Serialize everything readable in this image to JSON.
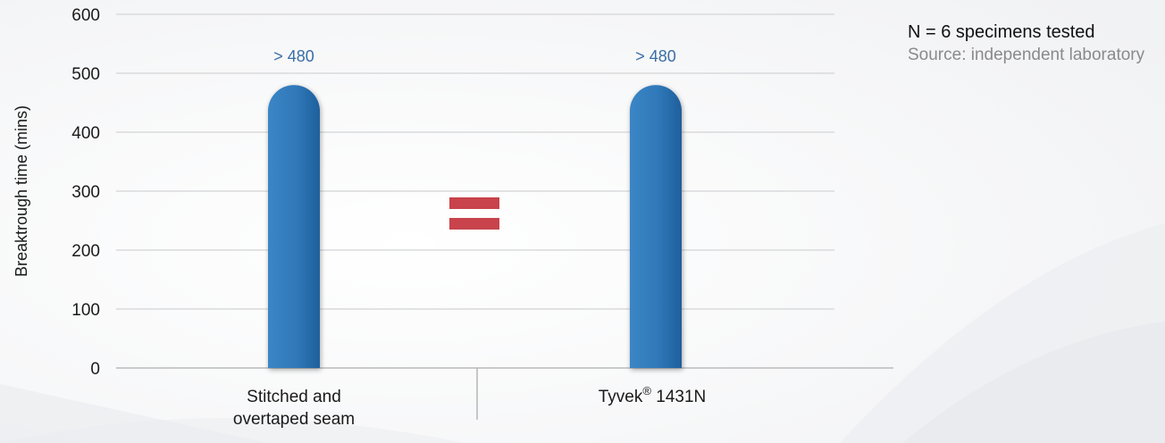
{
  "chart_data": {
    "type": "bar",
    "categories": [
      "Stitched and overtaped seam",
      "Tyvek® 1431N"
    ],
    "category_lines": [
      [
        "Stitched and",
        "overtaped seam"
      ],
      [
        "Tyvek",
        "®",
        " 1431N"
      ]
    ],
    "values": [
      480,
      480
    ],
    "data_labels": [
      "> 480",
      "> 480"
    ],
    "ylabel": "Breaktrough time (mins)",
    "xlabel": "",
    "ylim": [
      0,
      600
    ],
    "yticks": [
      0,
      100,
      200,
      300,
      400,
      500,
      600
    ],
    "grid": true,
    "annotation_symbol": "=",
    "colors": {
      "bar": "#2e78b8",
      "equals": "#c8434b",
      "label": "#3a6ea5"
    }
  },
  "notes": {
    "specimens": "N = 6 specimens tested",
    "source": "Source: independent laboratory"
  }
}
